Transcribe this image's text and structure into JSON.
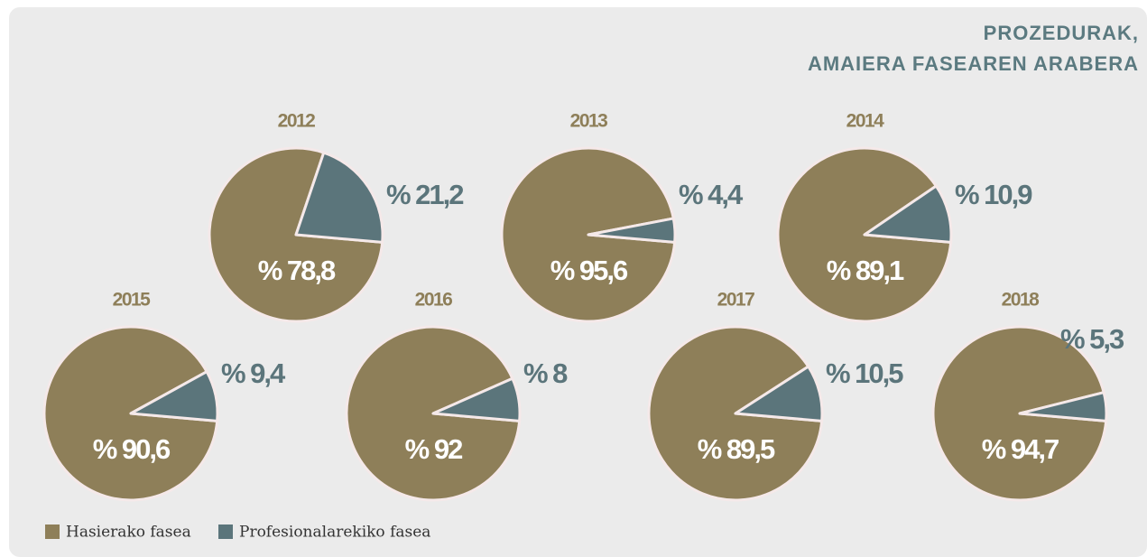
{
  "header": {
    "title": [
      "PROZEDURAK,",
      "AMAIERA FASEAREN ARABERA"
    ]
  },
  "chart_data": [
    {
      "type": "pie",
      "title": "2012",
      "categories": [
        "Hasierako fasea",
        "Profesionalarekiko fasea"
      ],
      "values": [
        78.8,
        21.2
      ],
      "value_labels": [
        "% 78,8",
        "% 21,2"
      ],
      "colors": [
        "#8e7f59",
        "#5b757b"
      ]
    },
    {
      "type": "pie",
      "title": "2013",
      "categories": [
        "Hasierako fasea",
        "Profesionalarekiko fasea"
      ],
      "values": [
        95.6,
        4.4
      ],
      "value_labels": [
        "% 95,6",
        "% 4,4"
      ],
      "colors": [
        "#8e7f59",
        "#5b757b"
      ]
    },
    {
      "type": "pie",
      "title": "2014",
      "categories": [
        "Hasierako fasea",
        "Profesionalarekiko fasea"
      ],
      "values": [
        89.1,
        10.9
      ],
      "value_labels": [
        "% 89,1",
        "% 10,9"
      ],
      "colors": [
        "#8e7f59",
        "#5b757b"
      ]
    },
    {
      "type": "pie",
      "title": "2015",
      "categories": [
        "Hasierako fasea",
        "Profesionalarekiko fasea"
      ],
      "values": [
        90.6,
        9.4
      ],
      "value_labels": [
        "% 90,6",
        "% 9,4"
      ],
      "colors": [
        "#8e7f59",
        "#5b757b"
      ]
    },
    {
      "type": "pie",
      "title": "2016",
      "categories": [
        "Hasierako fasea",
        "Profesionalarekiko fasea"
      ],
      "values": [
        92,
        8
      ],
      "value_labels": [
        "% 92",
        "% 8"
      ],
      "colors": [
        "#8e7f59",
        "#5b757b"
      ]
    },
    {
      "type": "pie",
      "title": "2017",
      "categories": [
        "Hasierako fasea",
        "Profesionalarekiko fasea"
      ],
      "values": [
        89.5,
        10.5
      ],
      "value_labels": [
        "% 89,5",
        "% 10,5"
      ],
      "colors": [
        "#8e7f59",
        "#5b757b"
      ]
    },
    {
      "type": "pie",
      "title": "2018",
      "categories": [
        "Hasierako fasea",
        "Profesionalarekiko fasea"
      ],
      "values": [
        94.7,
        5.3
      ],
      "value_labels": [
        "% 94,7",
        "% 5,3"
      ],
      "colors": [
        "#8e7f59",
        "#5b757b"
      ]
    }
  ]
}
